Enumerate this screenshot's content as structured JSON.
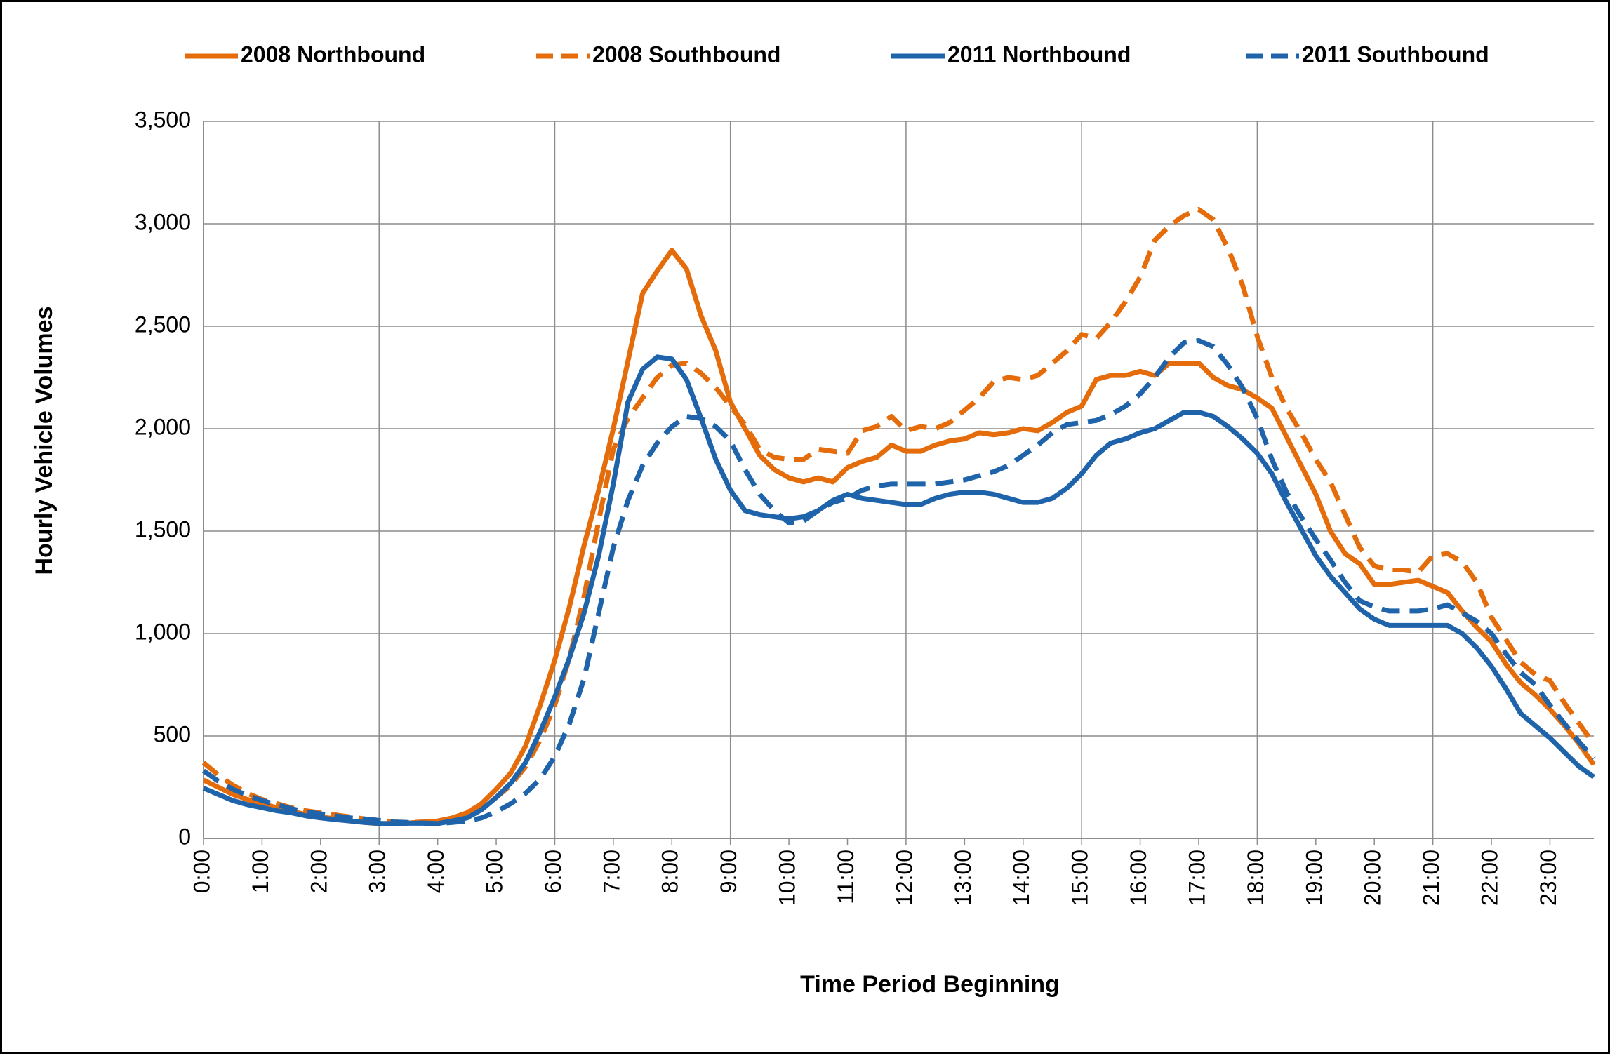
{
  "chart_data": {
    "type": "line",
    "x_label": "Time Period Beginning",
    "y_label": "Hourly Vehicle Volumes",
    "categories": [
      "0:00",
      null,
      null,
      null,
      "1:00",
      null,
      null,
      null,
      "2:00",
      null,
      null,
      null,
      "3:00",
      null,
      null,
      null,
      "4:00",
      null,
      null,
      null,
      "5:00",
      null,
      null,
      null,
      "6:00",
      null,
      null,
      null,
      "7:00",
      null,
      null,
      null,
      "8:00",
      null,
      null,
      null,
      "9:00",
      null,
      null,
      null,
      "10:00",
      null,
      null,
      null,
      "11:00",
      null,
      null,
      null,
      "12:00",
      null,
      null,
      null,
      "13:00",
      null,
      null,
      null,
      "14:00",
      null,
      null,
      null,
      "15:00",
      null,
      null,
      null,
      "16:00",
      null,
      null,
      null,
      "17:00",
      null,
      null,
      null,
      "18:00",
      null,
      null,
      null,
      "19:00",
      null,
      null,
      null,
      "20:00",
      null,
      null,
      null,
      "21:00",
      null,
      null,
      null,
      "22:00",
      null,
      null,
      null,
      "23:00",
      null,
      null,
      null
    ],
    "ylim": [
      0,
      3500
    ],
    "yticks": [
      0,
      500,
      {
        "value": 1000,
        "label": "1,000"
      },
      {
        "value": 1500,
        "label": "1,500"
      },
      {
        "value": 2000,
        "label": "2,000"
      },
      {
        "value": 2500,
        "label": "2,500"
      },
      {
        "value": 3000,
        "label": "3,000"
      },
      {
        "value": 3500,
        "label": "3,500"
      }
    ],
    "grid": true,
    "legend": "top",
    "series": [
      {
        "name": "2008 Northbound",
        "color": "#E46C0A",
        "dashed": false,
        "values": [
          285,
          250,
          215,
          190,
          170,
          150,
          135,
          115,
          105,
          95,
          85,
          78,
          72,
          72,
          75,
          80,
          85,
          100,
          125,
          170,
          240,
          320,
          450,
          650,
          870,
          1130,
          1430,
          1700,
          2000,
          2330,
          2660,
          2770,
          2870,
          2780,
          2550,
          2380,
          2130,
          2000,
          1870,
          1800,
          1760,
          1740,
          1760,
          1740,
          1810,
          1840,
          1860,
          1920,
          1890,
          1890,
          1920,
          1940,
          1950,
          1980,
          1970,
          1980,
          2000,
          1990,
          2030,
          2080,
          2110,
          2240,
          2260,
          2260,
          2280,
          2260,
          2320,
          2320,
          2320,
          2250,
          2210,
          2190,
          2150,
          2100,
          1960,
          1820,
          1680,
          1500,
          1390,
          1340,
          1240,
          1240,
          1250,
          1260,
          1230,
          1200,
          1110,
          1030,
          960,
          850,
          760,
          700,
          630,
          550,
          460,
          360
        ]
      },
      {
        "name": "2008 Southbound",
        "color": "#E46C0A",
        "dashed": true,
        "values": [
          370,
          310,
          260,
          220,
          190,
          170,
          150,
          135,
          125,
          115,
          105,
          95,
          88,
          80,
          78,
          80,
          85,
          95,
          115,
          150,
          200,
          260,
          350,
          480,
          650,
          880,
          1180,
          1550,
          1900,
          2050,
          2150,
          2250,
          2310,
          2320,
          2270,
          2200,
          2110,
          2020,
          1900,
          1860,
          1850,
          1850,
          1900,
          1890,
          1880,
          1990,
          2010,
          2060,
          1990,
          2010,
          2000,
          2030,
          2090,
          2150,
          2230,
          2250,
          2240,
          2260,
          2320,
          2380,
          2460,
          2440,
          2520,
          2620,
          2740,
          2920,
          2990,
          3040,
          3070,
          3020,
          2880,
          2700,
          2450,
          2250,
          2100,
          1980,
          1850,
          1740,
          1580,
          1420,
          1330,
          1310,
          1310,
          1300,
          1380,
          1390,
          1350,
          1250,
          1080,
          970,
          860,
          800,
          770,
          660,
          560,
          460
        ]
      },
      {
        "name": "2011 Northbound",
        "color": "#1F64AA",
        "dashed": false,
        "values": [
          245,
          215,
          185,
          165,
          150,
          135,
          125,
          110,
          100,
          92,
          85,
          78,
          73,
          72,
          74,
          74,
          72,
          85,
          100,
          140,
          200,
          270,
          370,
          520,
          690,
          880,
          1100,
          1380,
          1730,
          2130,
          2290,
          2350,
          2340,
          2240,
          2050,
          1850,
          1700,
          1600,
          1580,
          1570,
          1560,
          1570,
          1600,
          1650,
          1680,
          1660,
          1650,
          1640,
          1630,
          1630,
          1660,
          1680,
          1690,
          1690,
          1680,
          1660,
          1640,
          1640,
          1660,
          1710,
          1780,
          1870,
          1930,
          1950,
          1980,
          2000,
          2040,
          2080,
          2080,
          2060,
          2010,
          1950,
          1880,
          1780,
          1640,
          1510,
          1380,
          1280,
          1200,
          1120,
          1070,
          1040,
          1040,
          1040,
          1040,
          1040,
          1000,
          930,
          840,
          730,
          610,
          550,
          490,
          420,
          350,
          300
        ]
      },
      {
        "name": "2011 Southbound",
        "color": "#1F64AA",
        "dashed": true,
        "values": [
          330,
          280,
          240,
          210,
          185,
          165,
          145,
          130,
          120,
          110,
          100,
          95,
          88,
          80,
          78,
          75,
          72,
          78,
          85,
          100,
          130,
          170,
          220,
          290,
          400,
          560,
          780,
          1100,
          1420,
          1650,
          1820,
          1930,
          2010,
          2060,
          2050,
          2010,
          1940,
          1800,
          1680,
          1600,
          1540,
          1550,
          1600,
          1640,
          1660,
          1700,
          1720,
          1730,
          1730,
          1730,
          1730,
          1740,
          1750,
          1770,
          1790,
          1820,
          1870,
          1920,
          1980,
          2020,
          2030,
          2040,
          2070,
          2110,
          2170,
          2250,
          2350,
          2420,
          2430,
          2400,
          2310,
          2200,
          2050,
          1850,
          1690,
          1570,
          1460,
          1360,
          1250,
          1160,
          1130,
          1110,
          1110,
          1110,
          1120,
          1140,
          1100,
          1060,
          1000,
          900,
          810,
          750,
          650,
          560,
          470,
          390
        ]
      }
    ]
  }
}
